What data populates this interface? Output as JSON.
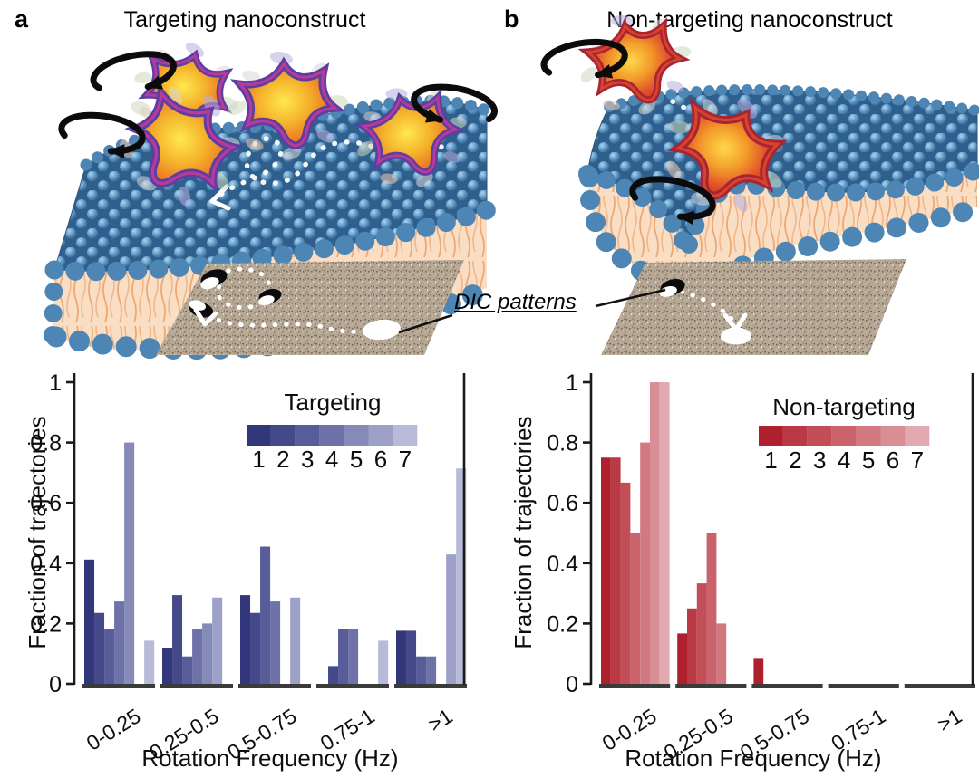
{
  "figure": {
    "panel_a_label": "a",
    "panel_a_title": "Targeting nanoconstruct",
    "panel_b_label": "b",
    "panel_b_title": "Non-targeting nanoconstruct",
    "dic_label": "DIC patterns"
  },
  "chart_data": [
    {
      "type": "bar",
      "title": "Targeting",
      "legend_title": "Targeting",
      "legend_labels": [
        "1",
        "2",
        "3",
        "4",
        "5",
        "6",
        "7"
      ],
      "legend_position": "top-right",
      "categories": [
        "0-0.25",
        "0.25-0.5",
        "0.5-0.75",
        "0.75-1",
        ">1"
      ],
      "series": [
        {
          "name": "1",
          "color": "#32367b",
          "values": [
            0.412,
            0.118,
            0.294,
            0,
            0.176
          ]
        },
        {
          "name": "2",
          "color": "#45498a",
          "values": [
            0.235,
            0.294,
            0.235,
            0.059,
            0.176
          ]
        },
        {
          "name": "3",
          "color": "#585c99",
          "values": [
            0.182,
            0.091,
            0.455,
            0.182,
            0.091
          ]
        },
        {
          "name": "4",
          "color": "#6e72a8",
          "values": [
            0.273,
            0.182,
            0.273,
            0.182,
            0.091
          ]
        },
        {
          "name": "5",
          "color": "#858ab8",
          "values": [
            0.8,
            0.2,
            0,
            0,
            0
          ]
        },
        {
          "name": "6",
          "color": "#9da1c8",
          "values": [
            0,
            0.286,
            0.286,
            0,
            0.429
          ]
        },
        {
          "name": "7",
          "color": "#b7bad8",
          "values": [
            0.143,
            0,
            0,
            0.143,
            0.714
          ]
        }
      ],
      "xlabel": "Rotation Frequency (Hz)",
      "ylabel": "Fraction of trajectories",
      "ylim": [
        0,
        1
      ],
      "yticks": [
        0,
        0.2,
        0.4,
        0.6,
        0.8,
        1
      ],
      "grid": false,
      "axis_color": "#1a1a1a",
      "baseline_color": "#3a3a3a"
    },
    {
      "type": "bar",
      "title": "Non-targeting",
      "legend_title": "Non-targeting",
      "legend_labels": [
        "1",
        "2",
        "3",
        "4",
        "5",
        "6",
        "7"
      ],
      "legend_position": "top-right",
      "categories": [
        "0-0.25",
        "0.25-0.5",
        "0.5-0.75",
        "0.75-1",
        ">1"
      ],
      "series": [
        {
          "name": "1",
          "color": "#ae202e",
          "values": [
            0.75,
            0.167,
            0.083,
            0,
            0
          ]
        },
        {
          "name": "2",
          "color": "#b93a45",
          "values": [
            0.75,
            0.25,
            0,
            0,
            0
          ]
        },
        {
          "name": "3",
          "color": "#c24e58",
          "values": [
            0.667,
            0.333,
            0,
            0,
            0
          ]
        },
        {
          "name": "4",
          "color": "#ca636c",
          "values": [
            0.5,
            0.5,
            0,
            0,
            0
          ]
        },
        {
          "name": "5",
          "color": "#d17880",
          "values": [
            0.8,
            0.2,
            0,
            0,
            0
          ]
        },
        {
          "name": "6",
          "color": "#d98d95",
          "values": [
            1,
            0,
            0,
            0,
            0
          ]
        },
        {
          "name": "7",
          "color": "#e2a9b1",
          "values": [
            1,
            0,
            0,
            0,
            0
          ]
        }
      ],
      "xlabel": "Rotation Frequency (Hz)",
      "ylabel": "Fraction of trajectories",
      "ylim": [
        0,
        1
      ],
      "yticks": [
        0,
        0.2,
        0.4,
        0.6,
        0.8,
        1
      ],
      "grid": false,
      "axis_color": "#1a1a1a",
      "baseline_color": "#3a3a3a"
    }
  ]
}
